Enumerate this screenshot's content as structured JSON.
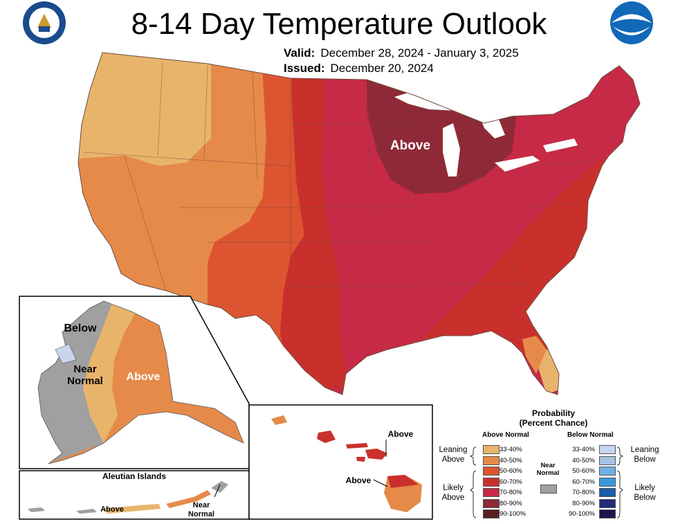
{
  "title": "8-14 Day Temperature Outlook",
  "valid_label": "Valid:",
  "valid_value": "December 28, 2024 - January 3, 2025",
  "issued_label": "Issued:",
  "issued_value": "December 20, 2024",
  "map_labels": {
    "conus_above": "Above",
    "alaska_below": "Below",
    "alaska_near_normal_1": "Near",
    "alaska_near_normal_2": "Normal",
    "alaska_above": "Above",
    "hawaii_above_1": "Above",
    "hawaii_above_2": "Above",
    "aleutian_title": "Aleutian Islands",
    "aleutian_above": "Above",
    "aleutian_near_1": "Near",
    "aleutian_near_2": "Normal"
  },
  "legend": {
    "title_1": "Probability",
    "title_2": "(Percent Chance)",
    "above_header": "Above Normal",
    "below_header": "Below Normal",
    "near_normal_1": "Near",
    "near_normal_2": "Normal",
    "leaning_above_1": "Leaning",
    "leaning_above_2": "Above",
    "likely_above_1": "Likely",
    "likely_above_2": "Above",
    "leaning_below_1": "Leaning",
    "leaning_below_2": "Below",
    "likely_below_1": "Likely",
    "likely_below_2": "Below",
    "above_rows": [
      {
        "range": "33-40%",
        "color": "#e8b46c"
      },
      {
        "range": "40-50%",
        "color": "#e68a4a"
      },
      {
        "range": "50-60%",
        "color": "#dc5530"
      },
      {
        "range": "60-70%",
        "color": "#c9302c"
      },
      {
        "range": "70-80%",
        "color": "#c72a46"
      },
      {
        "range": "80-90%",
        "color": "#8e2a38"
      },
      {
        "range": "90-100%",
        "color": "#5a1e22"
      }
    ],
    "below_rows": [
      {
        "range": "33-40%",
        "color": "#c6d6ec"
      },
      {
        "range": "40-50%",
        "color": "#a5c2e6"
      },
      {
        "range": "50-60%",
        "color": "#6fb0e4"
      },
      {
        "range": "60-70%",
        "color": "#3a9ad8"
      },
      {
        "range": "70-80%",
        "color": "#1a5ea8"
      },
      {
        "range": "80-90%",
        "color": "#232a78"
      },
      {
        "range": "90-100%",
        "color": "#1a1650"
      }
    ],
    "near_color": "#a0a0a0"
  },
  "logos": {
    "left": "department-of-commerce-seal-icon",
    "right": "noaa-logo-icon"
  }
}
